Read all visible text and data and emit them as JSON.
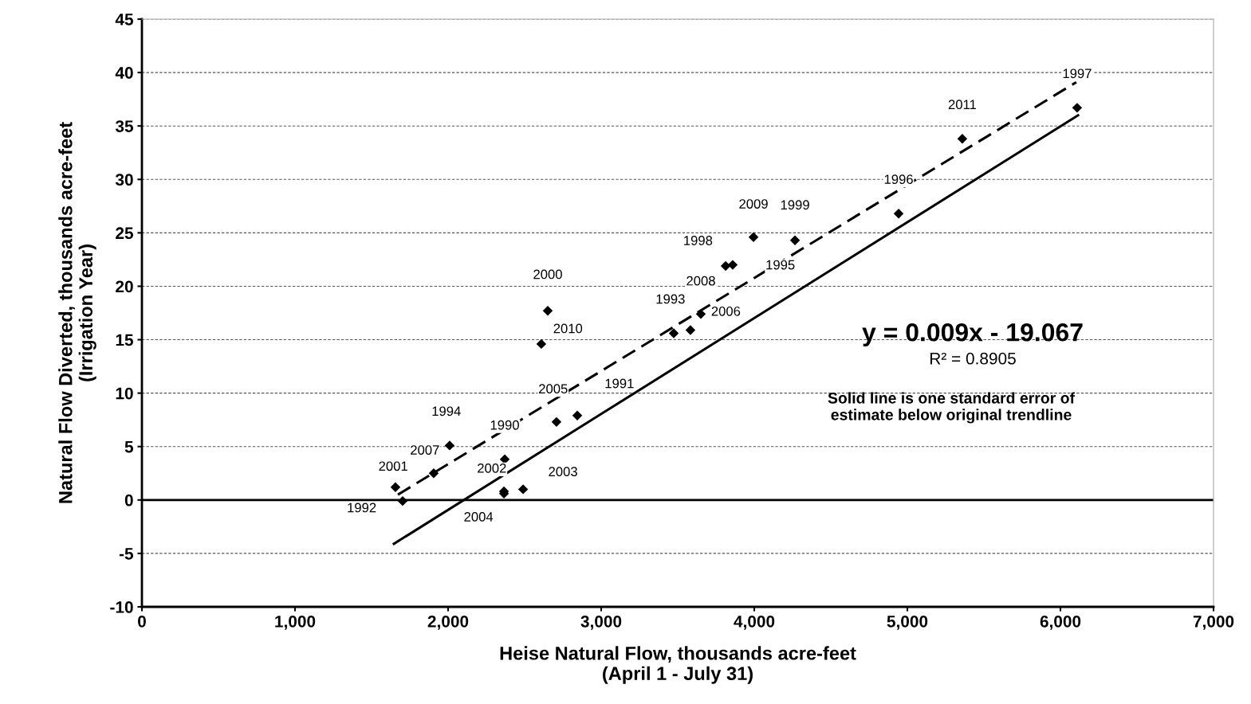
{
  "chart_data": {
    "type": "scatter",
    "xlabel": "Heise Natural Flow, thousands acre-feet\n(April 1 - July 31)",
    "ylabel": "Natural Flow Diverted, thousands acre-feet\n(Irrigation Year)",
    "xlim": [
      0,
      7000
    ],
    "ylim": [
      -10,
      45
    ],
    "xticks": [
      0,
      {
        "value": 1000,
        "label": "1,000"
      },
      {
        "value": 2000,
        "label": "2,000"
      },
      {
        "value": 3000,
        "label": "3,000"
      },
      {
        "value": 4000,
        "label": "4,000"
      },
      {
        "value": 5000,
        "label": "5,000"
      },
      {
        "value": 6000,
        "label": "6,000"
      },
      {
        "value": 7000,
        "label": "7,000"
      }
    ],
    "yticks": [
      -10,
      -5,
      0,
      5,
      10,
      15,
      20,
      25,
      30,
      35,
      40,
      45
    ],
    "grid": "y",
    "legend": false,
    "ref_lines": [
      {
        "axis": "y",
        "value": 0,
        "color": "#000000",
        "line_style": "solid"
      }
    ],
    "series": [
      {
        "color": "#000000",
        "marker": "diamond",
        "x": [
          1703,
          1656,
          1906,
          2010,
          2370,
          2365,
          2365,
          2490,
          2609,
          2651,
          2708,
          2844,
          3474,
          3583,
          3651,
          3813,
          3859,
          3995,
          4266,
          4943,
          5359,
          6109
        ],
        "values": [
          -0.1,
          1.2,
          2.5,
          5.1,
          3.8,
          0.8,
          0.6,
          1.0,
          14.6,
          17.7,
          7.3,
          7.9,
          15.6,
          15.9,
          17.4,
          21.9,
          22.0,
          24.6,
          24.3,
          26.8,
          33.8,
          36.7
        ]
      },
      {
        "type": "line",
        "color": "#000000",
        "line_style": "dashed",
        "marker": "none",
        "x": [
          1672,
          6104
        ],
        "values": [
          0.5,
          39.1
        ]
      },
      {
        "type": "line",
        "color": "#000000",
        "line_style": "solid",
        "marker": "none",
        "x": [
          1646,
          6115
        ],
        "values": [
          -4.1,
          36.0
        ]
      }
    ],
    "annotations": [
      {
        "text": "1992",
        "x": 1703,
        "y": -0.1
      },
      {
        "text": "2001",
        "x": 1656,
        "y": 1.2
      },
      {
        "text": "2007",
        "x": 1906,
        "y": 2.5
      },
      {
        "text": "1994",
        "x": 2010,
        "y": 5.1
      },
      {
        "text": "1990",
        "x": 2370,
        "y": 3.8
      },
      {
        "text": "2002",
        "x": 2365,
        "y": 0.8
      },
      {
        "text": "2004",
        "x": 2365,
        "y": 0.6
      },
      {
        "text": "2003",
        "x": 2490,
        "y": 1.0
      },
      {
        "text": "2010",
        "x": 2609,
        "y": 14.6
      },
      {
        "text": "2000",
        "x": 2651,
        "y": 17.7
      },
      {
        "text": "2005",
        "x": 2708,
        "y": 7.3
      },
      {
        "text": "1991",
        "x": 2844,
        "y": 7.9
      },
      {
        "text": "1993",
        "x": 3474,
        "y": 15.6
      },
      {
        "text": "2006",
        "x": 3583,
        "y": 15.9
      },
      {
        "text": "2008",
        "x": 3651,
        "y": 17.4
      },
      {
        "text": "1998",
        "x": 3813,
        "y": 21.9
      },
      {
        "text": "1995",
        "x": 3859,
        "y": 22.0
      },
      {
        "text": "2009",
        "x": 3995,
        "y": 24.6
      },
      {
        "text": "1999",
        "x": 4266,
        "y": 24.3
      },
      {
        "text": "1996",
        "x": 4943,
        "y": 26.8
      },
      {
        "text": "2011",
        "x": 5359,
        "y": 33.8
      },
      {
        "text": "1997",
        "x": 6109,
        "y": 36.7
      },
      "y = 0.009x - 19.067",
      "R² = 0.8905",
      "Solid line is one standard error of\nestimate below original trendline"
    ]
  }
}
